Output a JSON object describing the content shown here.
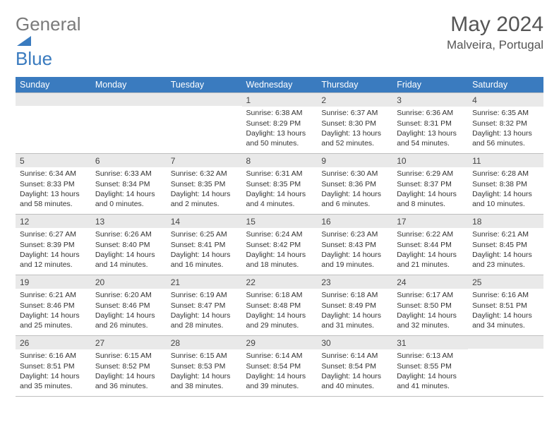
{
  "logo": {
    "text1": "General",
    "text2": "Blue"
  },
  "title": "May 2024",
  "location": "Malveira, Portugal",
  "weekdays": [
    "Sunday",
    "Monday",
    "Tuesday",
    "Wednesday",
    "Thursday",
    "Friday",
    "Saturday"
  ],
  "colors": {
    "header_bg": "#3a7bbf",
    "header_fg": "#ffffff",
    "daynum_bg": "#e9e9e9",
    "border": "#bfbfbf",
    "text": "#333333",
    "logo_gray": "#7a7a7a",
    "logo_blue": "#3a7bbf"
  },
  "weeks": [
    [
      {
        "n": "",
        "sr": "",
        "ss": "",
        "dl": ""
      },
      {
        "n": "",
        "sr": "",
        "ss": "",
        "dl": ""
      },
      {
        "n": "",
        "sr": "",
        "ss": "",
        "dl": ""
      },
      {
        "n": "1",
        "sr": "6:38 AM",
        "ss": "8:29 PM",
        "dl": "13 hours and 50 minutes."
      },
      {
        "n": "2",
        "sr": "6:37 AM",
        "ss": "8:30 PM",
        "dl": "13 hours and 52 minutes."
      },
      {
        "n": "3",
        "sr": "6:36 AM",
        "ss": "8:31 PM",
        "dl": "13 hours and 54 minutes."
      },
      {
        "n": "4",
        "sr": "6:35 AM",
        "ss": "8:32 PM",
        "dl": "13 hours and 56 minutes."
      }
    ],
    [
      {
        "n": "5",
        "sr": "6:34 AM",
        "ss": "8:33 PM",
        "dl": "13 hours and 58 minutes."
      },
      {
        "n": "6",
        "sr": "6:33 AM",
        "ss": "8:34 PM",
        "dl": "14 hours and 0 minutes."
      },
      {
        "n": "7",
        "sr": "6:32 AM",
        "ss": "8:35 PM",
        "dl": "14 hours and 2 minutes."
      },
      {
        "n": "8",
        "sr": "6:31 AM",
        "ss": "8:35 PM",
        "dl": "14 hours and 4 minutes."
      },
      {
        "n": "9",
        "sr": "6:30 AM",
        "ss": "8:36 PM",
        "dl": "14 hours and 6 minutes."
      },
      {
        "n": "10",
        "sr": "6:29 AM",
        "ss": "8:37 PM",
        "dl": "14 hours and 8 minutes."
      },
      {
        "n": "11",
        "sr": "6:28 AM",
        "ss": "8:38 PM",
        "dl": "14 hours and 10 minutes."
      }
    ],
    [
      {
        "n": "12",
        "sr": "6:27 AM",
        "ss": "8:39 PM",
        "dl": "14 hours and 12 minutes."
      },
      {
        "n": "13",
        "sr": "6:26 AM",
        "ss": "8:40 PM",
        "dl": "14 hours and 14 minutes."
      },
      {
        "n": "14",
        "sr": "6:25 AM",
        "ss": "8:41 PM",
        "dl": "14 hours and 16 minutes."
      },
      {
        "n": "15",
        "sr": "6:24 AM",
        "ss": "8:42 PM",
        "dl": "14 hours and 18 minutes."
      },
      {
        "n": "16",
        "sr": "6:23 AM",
        "ss": "8:43 PM",
        "dl": "14 hours and 19 minutes."
      },
      {
        "n": "17",
        "sr": "6:22 AM",
        "ss": "8:44 PM",
        "dl": "14 hours and 21 minutes."
      },
      {
        "n": "18",
        "sr": "6:21 AM",
        "ss": "8:45 PM",
        "dl": "14 hours and 23 minutes."
      }
    ],
    [
      {
        "n": "19",
        "sr": "6:21 AM",
        "ss": "8:46 PM",
        "dl": "14 hours and 25 minutes."
      },
      {
        "n": "20",
        "sr": "6:20 AM",
        "ss": "8:46 PM",
        "dl": "14 hours and 26 minutes."
      },
      {
        "n": "21",
        "sr": "6:19 AM",
        "ss": "8:47 PM",
        "dl": "14 hours and 28 minutes."
      },
      {
        "n": "22",
        "sr": "6:18 AM",
        "ss": "8:48 PM",
        "dl": "14 hours and 29 minutes."
      },
      {
        "n": "23",
        "sr": "6:18 AM",
        "ss": "8:49 PM",
        "dl": "14 hours and 31 minutes."
      },
      {
        "n": "24",
        "sr": "6:17 AM",
        "ss": "8:50 PM",
        "dl": "14 hours and 32 minutes."
      },
      {
        "n": "25",
        "sr": "6:16 AM",
        "ss": "8:51 PM",
        "dl": "14 hours and 34 minutes."
      }
    ],
    [
      {
        "n": "26",
        "sr": "6:16 AM",
        "ss": "8:51 PM",
        "dl": "14 hours and 35 minutes."
      },
      {
        "n": "27",
        "sr": "6:15 AM",
        "ss": "8:52 PM",
        "dl": "14 hours and 36 minutes."
      },
      {
        "n": "28",
        "sr": "6:15 AM",
        "ss": "8:53 PM",
        "dl": "14 hours and 38 minutes."
      },
      {
        "n": "29",
        "sr": "6:14 AM",
        "ss": "8:54 PM",
        "dl": "14 hours and 39 minutes."
      },
      {
        "n": "30",
        "sr": "6:14 AM",
        "ss": "8:54 PM",
        "dl": "14 hours and 40 minutes."
      },
      {
        "n": "31",
        "sr": "6:13 AM",
        "ss": "8:55 PM",
        "dl": "14 hours and 41 minutes."
      },
      {
        "n": "",
        "sr": "",
        "ss": "",
        "dl": ""
      }
    ]
  ],
  "labels": {
    "sunrise": "Sunrise:",
    "sunset": "Sunset:",
    "daylight": "Daylight:"
  }
}
